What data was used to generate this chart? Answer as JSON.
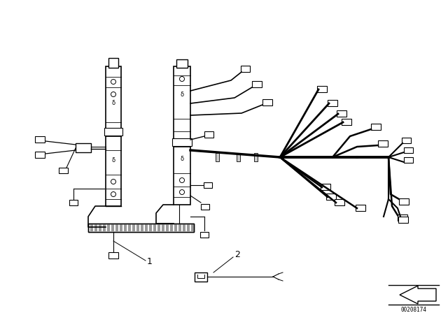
{
  "bg_color": "#ffffff",
  "line_color": "#000000",
  "fig_width": 6.4,
  "fig_height": 4.48,
  "dpi": 100,
  "part_number": "00208174",
  "label1": "1",
  "label2": "2"
}
